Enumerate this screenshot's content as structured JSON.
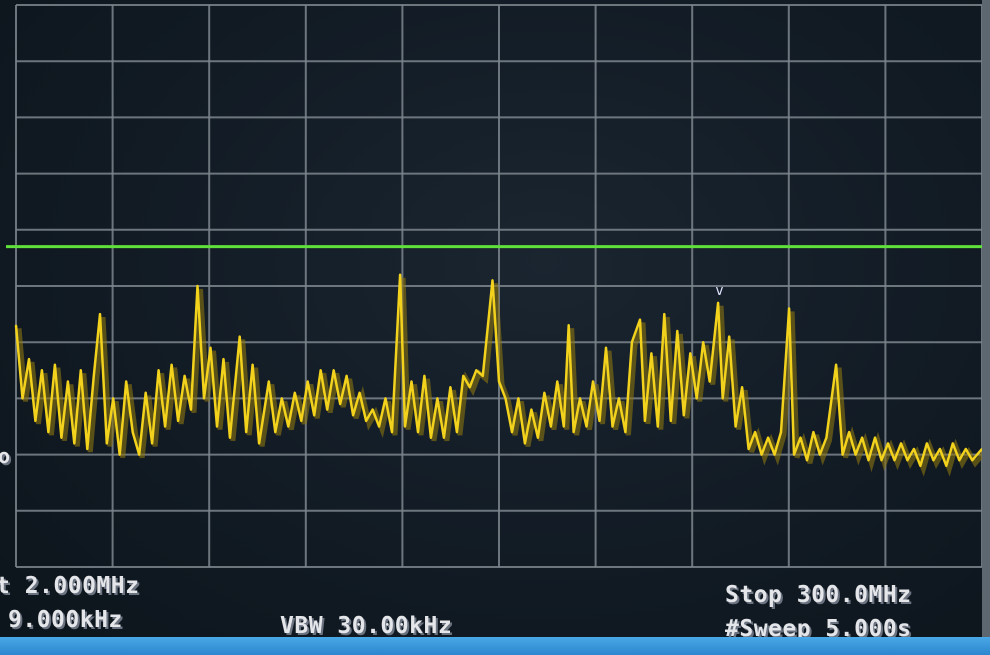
{
  "footer": {
    "start_fragment": "t 2.000MHz",
    "rbw_fragment": "9.000kHz",
    "vbw": "VBW 30.00kHz",
    "stop": "Stop 300.0MHz",
    "sweep": "#Sweep 5.000s",
    "left_edge_fragment": "o"
  },
  "chart_data": {
    "type": "line",
    "xlim": [
      2,
      300
    ],
    "ylim": [
      0,
      10
    ],
    "grid": true,
    "grid_divisions": {
      "x": 10,
      "y": 10
    },
    "colors": {
      "trace": "#f2d21c",
      "limit_line": "#5fe03a",
      "grid": "#7d858d",
      "background": "#111a23"
    },
    "limit_line_level": 5.7,
    "marker": {
      "x": 219,
      "glyph": "v"
    },
    "series": [
      {
        "x": [
          2,
          4,
          6,
          8,
          10,
          12,
          14,
          16,
          18,
          20,
          22,
          24,
          26,
          27.9,
          30,
          32,
          34,
          36,
          38,
          40,
          42,
          44,
          46,
          48,
          50,
          52,
          54,
          56,
          58,
          60,
          62,
          64,
          66,
          68,
          71,
          73,
          75,
          77,
          80,
          82,
          84,
          86,
          88,
          90,
          92,
          94,
          96,
          98,
          100,
          102,
          104,
          106,
          108,
          110,
          112,
          114,
          116,
          118,
          120.5,
          122,
          124,
          126,
          128,
          130,
          132,
          134,
          136,
          138,
          140,
          142,
          144,
          146,
          149,
          151,
          153,
          155,
          157,
          159,
          161,
          163,
          165,
          167,
          169,
          171,
          172.5,
          174,
          176,
          178,
          180,
          182,
          184,
          186,
          188,
          190,
          192,
          194.5,
          196,
          198,
          200,
          202,
          204,
          206,
          208,
          210,
          212,
          214,
          216,
          218.6,
          220,
          222,
          224,
          226,
          228,
          230,
          232,
          234,
          236,
          238,
          240.5,
          242,
          244,
          246,
          248,
          250,
          252,
          255,
          257,
          259,
          261,
          263,
          265,
          267,
          269,
          271,
          273,
          275,
          277,
          279,
          281,
          283,
          285,
          287,
          289,
          291,
          293,
          295,
          297,
          300
        ],
        "y": [
          4.3,
          3.0,
          3.7,
          2.6,
          3.5,
          2.4,
          3.6,
          2.3,
          3.3,
          2.2,
          3.5,
          2.1,
          3.4,
          4.5,
          2.2,
          3.0,
          2.0,
          3.3,
          2.4,
          2.0,
          3.1,
          2.2,
          3.5,
          2.5,
          3.6,
          2.6,
          3.4,
          2.8,
          5.0,
          3.0,
          3.9,
          2.5,
          3.7,
          2.3,
          4.1,
          2.4,
          3.6,
          2.2,
          3.3,
          2.4,
          3.0,
          2.5,
          3.1,
          2.6,
          3.3,
          2.7,
          3.5,
          2.8,
          3.5,
          2.9,
          3.4,
          2.7,
          3.1,
          2.6,
          2.8,
          2.5,
          3.0,
          2.4,
          5.2,
          2.5,
          3.3,
          2.4,
          3.4,
          2.3,
          3.0,
          2.3,
          3.2,
          2.4,
          3.4,
          3.2,
          3.5,
          3.4,
          5.1,
          3.3,
          3.0,
          2.4,
          3.0,
          2.2,
          2.8,
          2.3,
          3.1,
          2.5,
          3.3,
          2.5,
          4.3,
          2.4,
          3.0,
          2.5,
          3.3,
          2.6,
          3.9,
          2.5,
          3.0,
          2.4,
          4.0,
          4.4,
          2.6,
          3.8,
          2.5,
          4.5,
          2.6,
          4.2,
          2.7,
          3.8,
          3.0,
          4.0,
          3.3,
          4.7,
          3.0,
          4.1,
          2.5,
          3.2,
          2.1,
          2.4,
          2.0,
          2.3,
          2.0,
          2.4,
          4.6,
          2.0,
          2.3,
          1.9,
          2.4,
          2.0,
          2.3,
          3.6,
          2.0,
          2.4,
          2.0,
          2.3,
          1.9,
          2.3,
          1.9,
          2.2,
          1.9,
          2.2,
          1.9,
          2.1,
          1.8,
          2.2,
          1.9,
          2.1,
          1.8,
          2.2,
          1.9,
          2.1,
          1.9,
          2.1
        ]
      }
    ]
  }
}
